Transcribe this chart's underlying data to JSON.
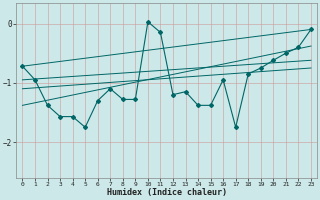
{
  "xlabel": "Humidex (Indice chaleur)",
  "bg_color": "#cce8e8",
  "line_color": "#006666",
  "grid_color": "#aacccc",
  "xlim": [
    -0.5,
    23.5
  ],
  "ylim": [
    -2.6,
    0.35
  ],
  "yticks": [
    0,
    -1,
    -2
  ],
  "xticks": [
    0,
    1,
    2,
    3,
    4,
    5,
    6,
    7,
    8,
    9,
    10,
    11,
    12,
    13,
    14,
    15,
    16,
    17,
    18,
    19,
    20,
    21,
    22,
    23
  ],
  "series": [
    [
      0,
      -0.72
    ],
    [
      1,
      -0.95
    ],
    [
      2,
      -1.38
    ],
    [
      3,
      -1.57
    ],
    [
      4,
      -1.57
    ],
    [
      5,
      -1.75
    ],
    [
      6,
      -1.3
    ],
    [
      7,
      -1.1
    ],
    [
      8,
      -1.28
    ],
    [
      9,
      -1.28
    ],
    [
      10,
      0.03
    ],
    [
      11,
      -0.15
    ],
    [
      12,
      -1.2
    ],
    [
      13,
      -1.15
    ],
    [
      14,
      -1.38
    ],
    [
      15,
      -1.38
    ],
    [
      16,
      -0.95
    ],
    [
      17,
      -1.75
    ],
    [
      18,
      -0.85
    ],
    [
      19,
      -0.75
    ],
    [
      20,
      -0.62
    ],
    [
      21,
      -0.5
    ],
    [
      22,
      -0.4
    ],
    [
      23,
      -0.1
    ]
  ],
  "trend_lines": [
    {
      "x0": 0,
      "y0": -0.72,
      "x1": 23,
      "y1": -0.1
    },
    {
      "x0": 0,
      "y0": -0.95,
      "x1": 23,
      "y1": -0.62
    },
    {
      "x0": 0,
      "y0": -1.1,
      "x1": 23,
      "y1": -0.75
    },
    {
      "x0": 0,
      "y0": -1.38,
      "x1": 23,
      "y1": -0.38
    }
  ]
}
